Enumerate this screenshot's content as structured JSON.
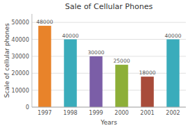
{
  "chart_data": {
    "type": "bar",
    "title": "Sale of Cellular Phones",
    "xlabel": "Years",
    "ylabel": "Scale of cellular phones",
    "categories": [
      "1997",
      "1998",
      "1999",
      "2000",
      "2001",
      "2002"
    ],
    "values": [
      48000,
      40000,
      30000,
      25000,
      18000,
      40000
    ],
    "colors": [
      "#E8832A",
      "#3AACBB",
      "#7B5EA7",
      "#8DAF38",
      "#A84B3A",
      "#3AACBB"
    ],
    "ylim": [
      0,
      55000
    ],
    "yticks": [
      0,
      10000,
      20000,
      30000,
      40000,
      50000
    ],
    "grid": true,
    "data_labels": true
  }
}
